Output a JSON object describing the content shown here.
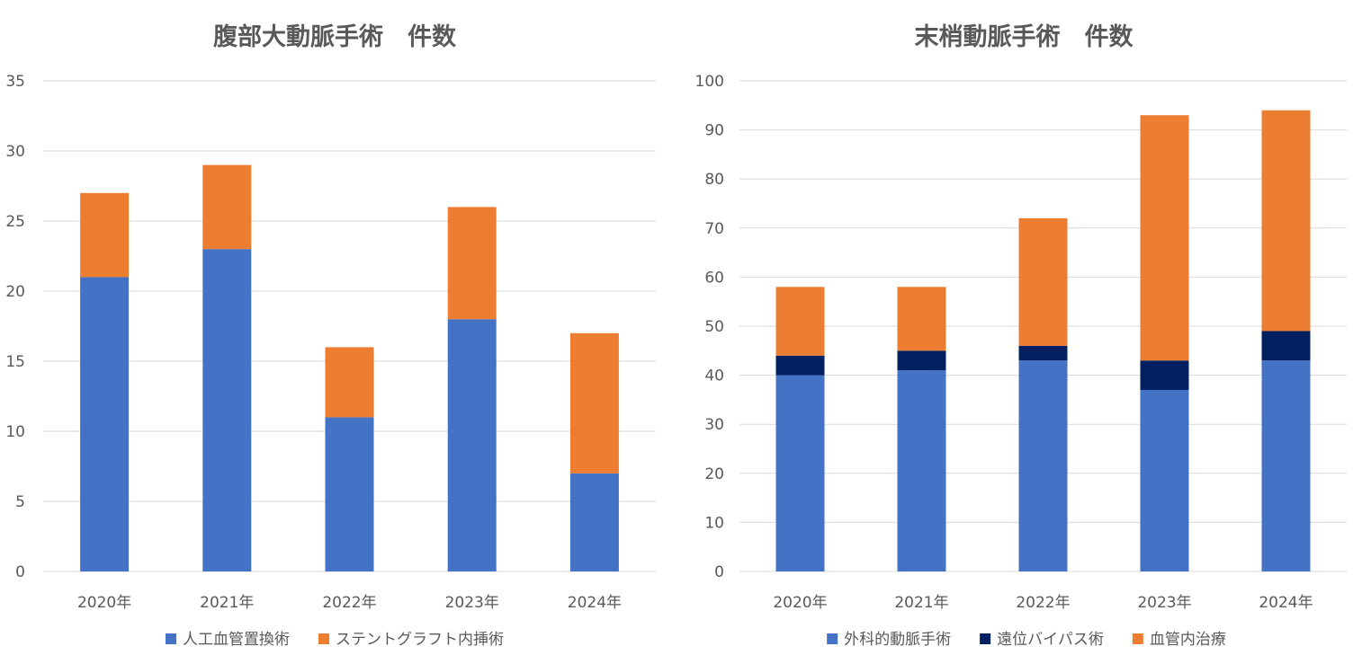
{
  "chart_data": [
    {
      "type": "bar",
      "stacked": true,
      "title": "腹部大動脈手術　件数",
      "categories": [
        "2020年",
        "2021年",
        "2022年",
        "2023年",
        "2024年"
      ],
      "series": [
        {
          "name": "人工血管置換術",
          "color": "#4472c4",
          "values": [
            21,
            23,
            11,
            18,
            7
          ]
        },
        {
          "name": "ステントグラフト内挿術",
          "color": "#ed7d31",
          "values": [
            6,
            6,
            5,
            8,
            10
          ]
        }
      ],
      "ylim": [
        0,
        35
      ],
      "yticks": [
        0,
        5,
        10,
        15,
        20,
        25,
        30,
        35
      ],
      "grid": true,
      "legend_position": "bottom"
    },
    {
      "type": "bar",
      "stacked": true,
      "title": "末梢動脈手術　件数",
      "categories": [
        "2020年",
        "2021年",
        "2022年",
        "2023年",
        "2024年"
      ],
      "series": [
        {
          "name": "外科的動脈手術",
          "color": "#4472c4",
          "values": [
            40,
            41,
            43,
            37,
            43
          ]
        },
        {
          "name": "遠位バイパス術",
          "color": "#002060",
          "values": [
            4,
            4,
            3,
            6,
            6
          ]
        },
        {
          "name": "血管内治療",
          "color": "#ed7d31",
          "values": [
            14,
            13,
            26,
            50,
            45
          ]
        }
      ],
      "ylim": [
        0,
        100
      ],
      "yticks": [
        0,
        10,
        20,
        30,
        40,
        50,
        60,
        70,
        80,
        90,
        100
      ],
      "grid": true,
      "legend_position": "bottom"
    }
  ]
}
